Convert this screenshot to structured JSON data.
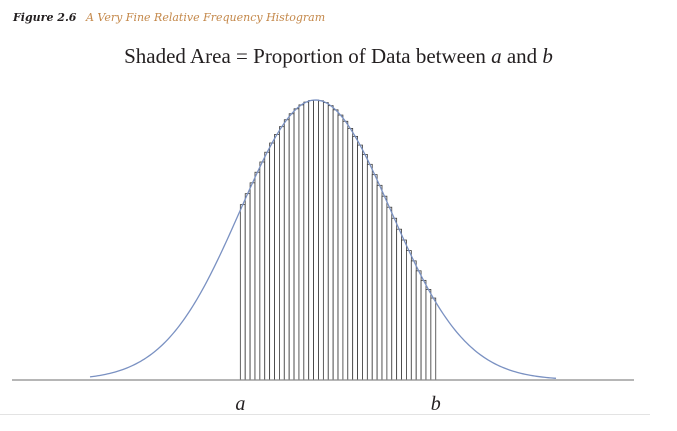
{
  "caption": {
    "figure_number": "Figure 2.6",
    "figure_title": "A Very Fine Relative Frequency Histogram"
  },
  "chart_data": {
    "type": "area",
    "title_parts": {
      "prefix": "Shaded Area = Proportion of Data between ",
      "var_a": "a",
      "middle": " and ",
      "var_b": "b"
    },
    "distribution": "normal",
    "mean": 0,
    "std_dev": 1,
    "xlim": [
      -3,
      3.2
    ],
    "shaded_from": -1.0,
    "shaded_to": 1.6,
    "bin_width": 0.065,
    "x_markers": [
      {
        "label": "a",
        "x": -1.0
      },
      {
        "label": "b",
        "x": 1.6
      }
    ],
    "colors": {
      "curve": "#7a91c2",
      "bars": "#3a3a3a",
      "axis": "#8a8a8a"
    },
    "grid": false,
    "legend": "none"
  }
}
